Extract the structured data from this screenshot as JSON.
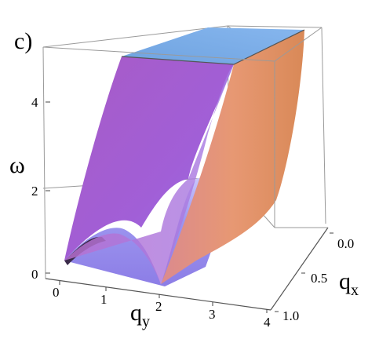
{
  "panel_label": "c)",
  "chart_data": {
    "type": "surface3d",
    "title": "",
    "z_label": "ω",
    "y_label": "q",
    "y_label_sub": "y",
    "x_label": "q",
    "x_label_sub": "x",
    "z_ticks": [
      "0",
      "2",
      "4"
    ],
    "y_ticks": [
      "0",
      "1",
      "2",
      "3",
      "4"
    ],
    "x_ticks": [
      "0.0",
      "0.5",
      "1.0"
    ],
    "z_range": [
      0,
      5
    ],
    "qy_range": [
      0,
      4
    ],
    "qx_range": [
      0,
      1
    ],
    "surfaces": [
      {
        "face": "front",
        "qx": 1.0,
        "description_points_qy": [
          0,
          0.5,
          1.0,
          1.5,
          2.0,
          2.5,
          3.0
        ],
        "omega": [
          0.3,
          0.85,
          1.0,
          0.85,
          0.0,
          2.0,
          4.0
        ]
      },
      {
        "face": "top-plateau",
        "omega": 5.0
      }
    ],
    "colors": {
      "purple_left": "#a55fd0",
      "purple_front": "#b27be2",
      "orange_right": "#e89a6c",
      "blue_top": "#76a8e3",
      "lavender_dome": "#a49ef0"
    }
  }
}
